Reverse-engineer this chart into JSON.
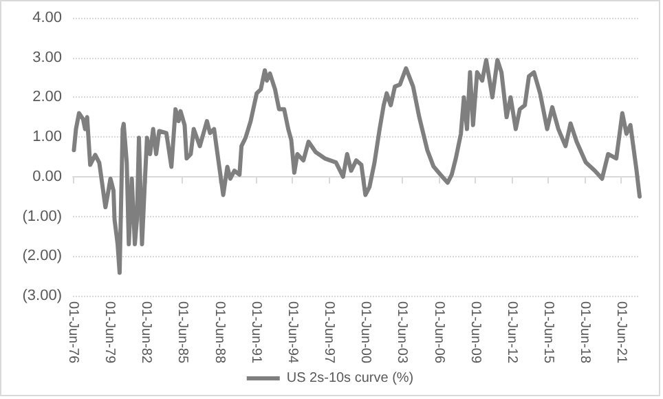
{
  "chart_data": {
    "type": "line",
    "x": [
      "1976-07",
      "1976-09",
      "1976-12",
      "1977-04",
      "1977-06",
      "1977-08",
      "1977-11",
      "1978-04",
      "1978-08",
      "1979-02",
      "1979-04",
      "1979-07",
      "1979-10",
      "1979-11",
      "1980-02",
      "1980-04",
      "1980-07",
      "1980-08",
      "1980-11",
      "1981-01",
      "1981-04",
      "1981-07",
      "1981-09",
      "1981-11",
      "1982-02",
      "1982-05",
      "1982-07",
      "1982-10",
      "1983-01",
      "1983-04",
      "1983-07",
      "1984-02",
      "1984-07",
      "1984-11",
      "1985-02",
      "1985-04",
      "1985-08",
      "1985-10",
      "1986-02",
      "1986-05",
      "1986-11",
      "1987-06",
      "1987-09",
      "1988-01",
      "1988-05",
      "1988-10",
      "1989-02",
      "1989-05",
      "1989-09",
      "1990-02",
      "1990-04",
      "1990-08",
      "1991-01",
      "1991-07",
      "1991-11",
      "1992-03",
      "1992-05",
      "1992-08",
      "1993-01",
      "1993-05",
      "1993-10",
      "1994-02",
      "1994-05",
      "1994-08",
      "1994-11",
      "1995-05",
      "1995-10",
      "1996-05",
      "1997-02",
      "1998-01",
      "1998-08",
      "1998-12",
      "1999-04",
      "1999-09",
      "2000-02",
      "2000-06",
      "2000-10",
      "2001-03",
      "2001-08",
      "2001-12",
      "2002-03",
      "2002-07",
      "2002-11",
      "2003-04",
      "2003-10",
      "2004-05",
      "2004-11",
      "2005-07",
      "2006-01",
      "2006-08",
      "2007-03",
      "2007-07",
      "2007-11",
      "2008-04",
      "2008-07",
      "2008-10",
      "2009-01",
      "2009-04",
      "2009-08",
      "2010-01",
      "2010-05",
      "2010-11",
      "2011-04",
      "2011-08",
      "2012-01",
      "2012-05",
      "2012-10",
      "2013-02",
      "2013-07",
      "2013-11",
      "2014-04",
      "2014-10",
      "2015-05",
      "2015-10",
      "2016-04",
      "2016-11",
      "2017-04",
      "2017-10",
      "2018-07",
      "2019-04",
      "2019-11",
      "2020-05",
      "2021-01",
      "2021-07",
      "2021-11",
      "2022-03",
      "2022-09",
      "2022-12"
    ],
    "series": [
      {
        "name": "US 2s-10s curve (%)",
        "color": "#7f7f7f",
        "values": [
          0.67,
          1.2,
          1.6,
          1.45,
          1.2,
          1.5,
          0.3,
          0.55,
          0.35,
          -0.77,
          -0.5,
          -0.05,
          -0.35,
          -1.08,
          -1.7,
          -2.42,
          1.2,
          1.33,
          0.35,
          -1.7,
          -0.05,
          -1.7,
          -1.08,
          0.98,
          -1.7,
          -0.05,
          0.98,
          0.57,
          1.2,
          0.57,
          1.15,
          1.1,
          0.25,
          1.7,
          1.4,
          1.65,
          1.3,
          0.46,
          0.57,
          1.2,
          0.77,
          1.4,
          1.1,
          1.2,
          0.46,
          -0.46,
          0.25,
          -0.05,
          0.15,
          0.05,
          0.77,
          0.98,
          1.4,
          2.1,
          2.2,
          2.68,
          2.42,
          2.6,
          2.2,
          1.7,
          1.7,
          1.2,
          0.93,
          0.1,
          0.57,
          0.41,
          0.88,
          0.62,
          0.46,
          0.36,
          0,
          0.57,
          0.15,
          0.41,
          0.3,
          -0.46,
          -0.26,
          0.36,
          1.2,
          1.8,
          2.1,
          1.8,
          2.27,
          2.32,
          2.73,
          2.27,
          1.5,
          0.67,
          0.26,
          0.05,
          -0.15,
          0.05,
          0.46,
          1.08,
          2.0,
          1.2,
          2.63,
          1.3,
          2.63,
          2.42,
          2.94,
          2.0,
          2.94,
          2.63,
          1.5,
          2.0,
          1.2,
          1.7,
          1.8,
          2.53,
          2.63,
          2.1,
          1.2,
          1.75,
          1.2,
          0.77,
          1.34,
          0.88,
          0.36,
          0.15,
          -0.05,
          0.57,
          0.46,
          1.6,
          1.08,
          1.3,
          0.15,
          -0.5
        ]
      }
    ],
    "xlim": [
      "1976-06-01",
      "2022-12-01"
    ],
    "xticks": [
      {
        "value": "1976-06-01",
        "label": "01-Jun-76"
      },
      {
        "value": "1979-06-01",
        "label": "01-Jun-79"
      },
      {
        "value": "1982-06-01",
        "label": "01-Jun-82"
      },
      {
        "value": "1985-06-01",
        "label": "01-Jun-85"
      },
      {
        "value": "1988-06-01",
        "label": "01-Jun-88"
      },
      {
        "value": "1991-06-01",
        "label": "01-Jun-91"
      },
      {
        "value": "1994-06-01",
        "label": "01-Jun-94"
      },
      {
        "value": "1997-06-01",
        "label": "01-Jun-97"
      },
      {
        "value": "2000-06-01",
        "label": "01-Jun-00"
      },
      {
        "value": "2003-06-01",
        "label": "01-Jun-03"
      },
      {
        "value": "2006-06-01",
        "label": "01-Jun-06"
      },
      {
        "value": "2009-06-01",
        "label": "01-Jun-09"
      },
      {
        "value": "2012-06-01",
        "label": "01-Jun-12"
      },
      {
        "value": "2015-06-01",
        "label": "01-Jun-15"
      },
      {
        "value": "2018-06-01",
        "label": "01-Jun-18"
      },
      {
        "value": "2021-06-01",
        "label": "01-Jun-21"
      }
    ],
    "ylim": [
      -3,
      4
    ],
    "yticks": [
      {
        "value": -3,
        "label": "(3.00)"
      },
      {
        "value": -2,
        "label": "(2.00)"
      },
      {
        "value": -1,
        "label": "(1.00)"
      },
      {
        "value": 0,
        "label": "0.00"
      },
      {
        "value": 1,
        "label": "1.00"
      },
      {
        "value": 2,
        "label": "2.00"
      },
      {
        "value": 3,
        "label": "3.00"
      },
      {
        "value": 4,
        "label": "4.00"
      }
    ],
    "grid": "y",
    "legend": "bottom",
    "marker": "none",
    "line_style": "solid"
  }
}
